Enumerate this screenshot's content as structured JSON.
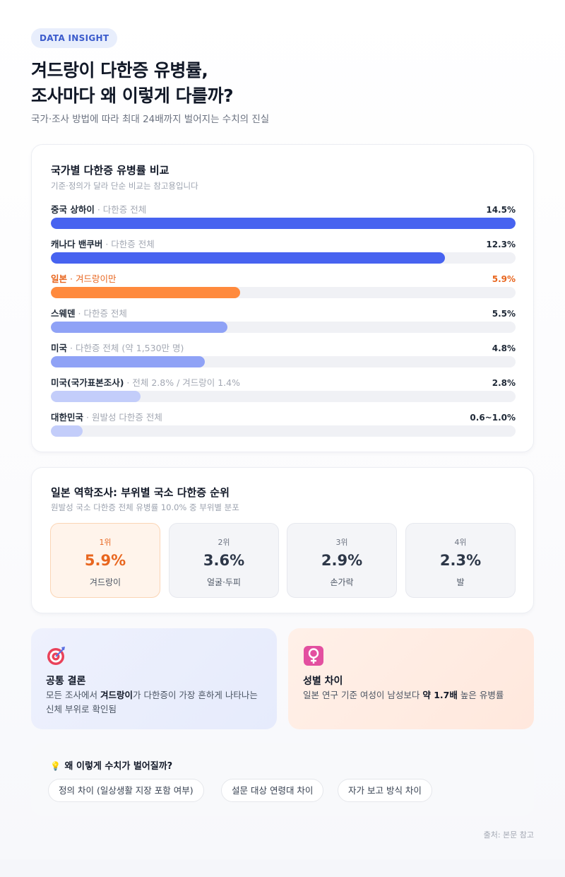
{
  "header": {
    "tag": "DATA INSIGHT",
    "title_line1": "겨드랑이 다한증 유병률,",
    "title_line2": "조사마다 왜 이렇게 다를까?",
    "subtitle": "국가·조사 방법에 따라 최대 24배까지 벌어지는 수치의 진실"
  },
  "country_card": {
    "title": "국가별 다한증 유병률 비교",
    "subtitle": "기준·정의가 달라 단순 비교는 참고용입니다"
  },
  "chart_data": {
    "type": "bar",
    "orientation": "horizontal",
    "title": "국가별 다한증 유병률 비교",
    "subtitle": "기준·정의가 달라 단순 비교는 참고용입니다",
    "unit": "%",
    "xlim": [
      0,
      14.5
    ],
    "categories": [
      "중국 상하이",
      "캐나다 밴쿠버",
      "일본",
      "스웨덴",
      "미국",
      "미국(국가표본조사)",
      "대한민국"
    ],
    "descriptions": [
      "· 다한증 전체",
      "· 다한증 전체",
      "· 겨드랑이만",
      "· 다한증 전체",
      "· 다한증 전체 (약 1,530만 명)",
      "· 전체 2.8% / 겨드랑이 1.4%",
      "· 원발성 다한증 전체"
    ],
    "values": [
      14.5,
      12.3,
      5.9,
      5.5,
      4.8,
      2.8,
      1.0
    ],
    "value_labels": [
      "14.5%",
      "12.3%",
      "5.9%",
      "5.5%",
      "4.8%",
      "2.8%",
      "0.6~1.0%"
    ],
    "colors": [
      "#4763f0",
      "#4763f0",
      "#ff8a3d",
      "#8fa2f6",
      "#8fa2f6",
      "#c3cdfa",
      "#c3cdfa"
    ],
    "highlight_index": 2
  },
  "japan_card": {
    "title": "일본 역학조사: 부위별 국소 다한증 순위",
    "subtitle": "원발성 국소 다한증 전체 유병률 10.0% 중 부위별 분포",
    "ranks": [
      {
        "rank": "1위",
        "value": "5.9%",
        "part": "겨드랑이"
      },
      {
        "rank": "2위",
        "value": "3.6%",
        "part": "얼굴·두피"
      },
      {
        "rank": "3위",
        "value": "2.9%",
        "part": "손가락"
      },
      {
        "rank": "4위",
        "value": "2.3%",
        "part": "발"
      }
    ]
  },
  "insights": {
    "common": {
      "icon": "target-icon",
      "title": "공통 결론",
      "text_pre": "모든 조사에서 ",
      "text_bold": "겨드랑이",
      "text_post": "가 다한증이 가장 흔하게 나타나는 신체 부위로 확인됨"
    },
    "gender": {
      "icon": "female-sign-icon",
      "title": "성별 차이",
      "text_pre": "일본 연구 기준 여성이 남성보다 ",
      "text_bold": "약 1.7배",
      "text_post": " 높은 유병률"
    }
  },
  "why": {
    "title": "왜 이렇게 수치가 벌어질까?",
    "chips": [
      "정의 차이 (일상생활 지장 포함 여부)",
      "설문 대상 연령대 차이",
      "자가 보고 방식 차이"
    ]
  },
  "source": "출처: 본문 참고"
}
